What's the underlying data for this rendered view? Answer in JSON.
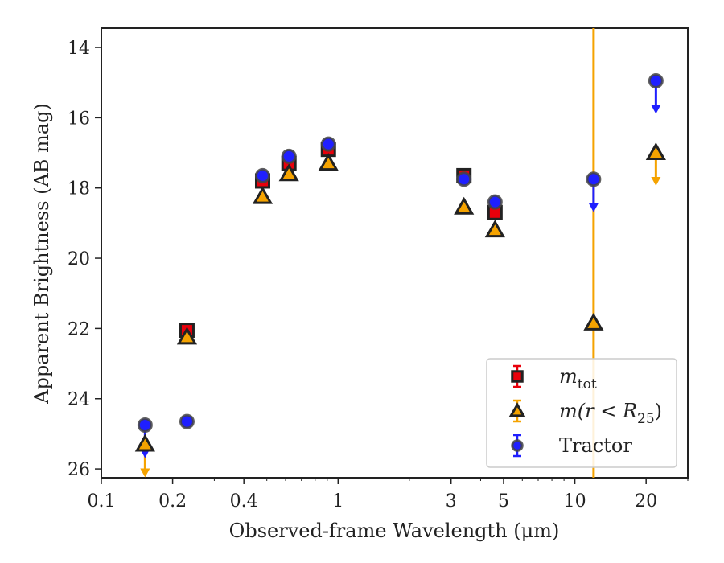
{
  "chart_data": {
    "type": "scatter",
    "xlabel": "Observed-frame Wavelength (μm)",
    "ylabel": "Apparent Brightness (AB mag)",
    "xscale": "log",
    "yaxis_inverted": true,
    "xlim": [
      0.1,
      30
    ],
    "ylim": [
      26.25,
      13.45
    ],
    "xticks": [
      {
        "value": 0.1,
        "label": "0.1"
      },
      {
        "value": 0.2,
        "label": "0.2"
      },
      {
        "value": 0.4,
        "label": "0.4"
      },
      {
        "value": 1,
        "label": "1"
      },
      {
        "value": 3,
        "label": "3"
      },
      {
        "value": 5,
        "label": "5"
      },
      {
        "value": 10,
        "label": "10"
      },
      {
        "value": 20,
        "label": "20"
      }
    ],
    "yticks": [
      {
        "value": 14,
        "label": "14"
      },
      {
        "value": 16,
        "label": "16"
      },
      {
        "value": 18,
        "label": "18"
      },
      {
        "value": 20,
        "label": "20"
      },
      {
        "value": 22,
        "label": "22"
      },
      {
        "value": 24,
        "label": "24"
      },
      {
        "value": 26,
        "label": "26"
      }
    ],
    "legend_position": "lower-right",
    "series": [
      {
        "name": "m_tot",
        "marker": "square",
        "color": "#e8000b",
        "points": [
          {
            "x": 0.23,
            "y": 22.05
          },
          {
            "x": 0.48,
            "y": 17.8
          },
          {
            "x": 0.62,
            "y": 17.3
          },
          {
            "x": 0.91,
            "y": 16.9
          },
          {
            "x": 3.4,
            "y": 17.65
          },
          {
            "x": 4.6,
            "y": 18.7
          }
        ]
      },
      {
        "name": "m(r < R25)",
        "marker": "triangle",
        "color": "#f5a300",
        "points": [
          {
            "x": 0.153,
            "y": 25.3,
            "upper_limit": true
          },
          {
            "x": 0.23,
            "y": 22.25
          },
          {
            "x": 0.48,
            "y": 18.25
          },
          {
            "x": 0.62,
            "y": 17.6
          },
          {
            "x": 0.91,
            "y": 17.3
          },
          {
            "x": 3.4,
            "y": 18.55
          },
          {
            "x": 4.6,
            "y": 19.2
          },
          {
            "x": 12.0,
            "y": 21.85,
            "error_spans_plot": true
          },
          {
            "x": 22.0,
            "y": 17.0,
            "upper_limit": true
          }
        ]
      },
      {
        "name": "Tractor",
        "marker": "circle",
        "color": "#1f1fff",
        "points": [
          {
            "x": 0.153,
            "y": 24.75,
            "upper_limit": true
          },
          {
            "x": 0.23,
            "y": 24.65
          },
          {
            "x": 0.48,
            "y": 17.65
          },
          {
            "x": 0.62,
            "y": 17.1
          },
          {
            "x": 0.91,
            "y": 16.75
          },
          {
            "x": 3.4,
            "y": 17.75
          },
          {
            "x": 4.6,
            "y": 18.4
          },
          {
            "x": 12.0,
            "y": 17.75,
            "upper_limit": true
          },
          {
            "x": 22.0,
            "y": 14.95,
            "upper_limit": true
          }
        ]
      }
    ],
    "legend": [
      {
        "series": 0,
        "label_base": "m",
        "label_sub": "tot",
        "label_tail": ""
      },
      {
        "series": 1,
        "label_base": "m(r < R",
        "label_sub": "25",
        "label_tail": ")"
      },
      {
        "series": 2,
        "label_base": "Tractor",
        "label_sub": "",
        "label_tail": ""
      }
    ]
  }
}
